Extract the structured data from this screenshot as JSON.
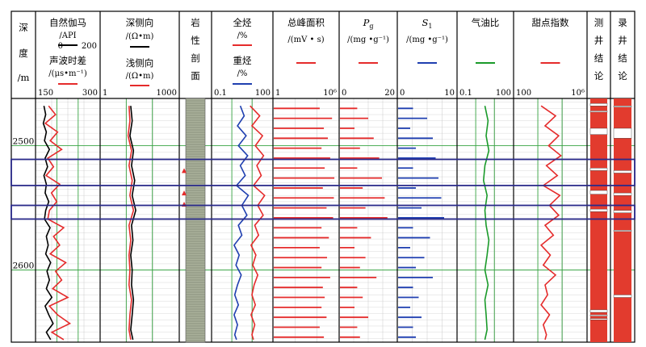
{
  "depth_track": {
    "title_chars": [
      "深",
      "度",
      "/m"
    ],
    "depth_labels": [
      "2500",
      "2600"
    ]
  },
  "tracks": {
    "gr_ac": {
      "curve1_name": "自然伽马",
      "curve1_unit": "/API",
      "curve1_scale_left": "0",
      "curve1_scale_right": "200",
      "curve1_color": "#000000",
      "curve2_name": "声波时差",
      "curve2_unit": "/(μs•m⁻¹)",
      "curve2_scale_left": "150",
      "curve2_scale_right": "300",
      "curve2_color": "#e52b2b"
    },
    "resistivity": {
      "curve1_name": "深侧向",
      "curve1_unit": "/(Ω•m)",
      "curve1_color": "#000000",
      "curve2_name": "浅侧向",
      "curve2_unit": "/(Ω•m)",
      "curve2_color": "#e52b2b",
      "scale_left": "1",
      "scale_right": "1000"
    },
    "lithology": {
      "title_chars": [
        "岩",
        "性",
        "剖",
        "面"
      ]
    },
    "gas": {
      "curve1_name": "全烃",
      "curve1_unit": "/%",
      "curve1_color": "#e52b2b",
      "curve2_name": "重烃",
      "curve2_unit": "/%",
      "curve2_color": "#1f3fb0",
      "scale_left": "0.1",
      "scale_right": "100"
    },
    "peak_area": {
      "name": "总峰面积",
      "unit": "/(mV • s)",
      "color": "#e52b2b",
      "scale_left": "1",
      "scale_right": "10⁶"
    },
    "pg": {
      "name": "P",
      "name_sub": "g",
      "unit": "/(mg •g⁻¹)",
      "color": "#e52b2b",
      "scale_left": "0",
      "scale_right": "20"
    },
    "s1": {
      "name": "S",
      "name_sub": "1",
      "unit": "/(mg •g⁻¹)",
      "color": "#1f3fb0",
      "scale_left": "0",
      "scale_right": "10"
    },
    "gor": {
      "name": "气油比",
      "color": "#1a9a2a",
      "scale_left": "0.1",
      "scale_right": "100"
    },
    "sweet": {
      "name": "甜点指数",
      "color": "#e52b2b",
      "scale_left": "100",
      "scale_right": "10⁶"
    },
    "log_conclusion": {
      "title_chars": [
        "测",
        "井",
        "结",
        "论"
      ]
    },
    "mud_conclusion": {
      "title_chars": [
        "录",
        "井",
        "结",
        "论"
      ]
    }
  },
  "chart_data": {
    "type": "line",
    "depth_range": [
      2462,
      2658
    ],
    "depth_ticks": [
      2500,
      2600
    ],
    "highlight_intervals": [
      [
        2511,
        2532
      ],
      [
        2548,
        2559
      ]
    ],
    "series": [
      {
        "curve": "gr",
        "depth": [
          2468,
          2475,
          2482,
          2489,
          2496,
          2503,
          2510,
          2517,
          2524,
          2531,
          2538,
          2545,
          2552,
          2559,
          2566,
          2573,
          2580,
          2587,
          2594,
          2601,
          2608,
          2615,
          2622,
          2629,
          2636,
          2643,
          2650,
          2656
        ],
        "values": [
          22,
          28,
          20,
          30,
          24,
          40,
          26,
          34,
          22,
          30,
          26,
          38,
          28,
          24,
          42,
          30,
          36,
          28,
          44,
          32,
          40,
          30,
          48,
          26,
          38,
          52,
          30,
          44
        ]
      },
      {
        "curve": "ac",
        "depth": [
          2468,
          2475,
          2482,
          2489,
          2496,
          2503,
          2510,
          2517,
          2524,
          2531,
          2538,
          2545,
          2552,
          2559,
          2566,
          2573,
          2580,
          2587,
          2594,
          2601,
          2608,
          2615,
          2622,
          2629,
          2636,
          2643,
          2650,
          2656
        ],
        "values": [
          178,
          195,
          170,
          200,
          182,
          210,
          176,
          190,
          172,
          205,
          185,
          198,
          180,
          176,
          215,
          190,
          205,
          182,
          220,
          195,
          210,
          188,
          225,
          180,
          200,
          230,
          186,
          215
        ]
      },
      {
        "curve": "lld",
        "depth": [
          2468,
          2480,
          2492,
          2504,
          2516,
          2528,
          2540,
          2552,
          2564,
          2576,
          2588,
          2600,
          2612,
          2624,
          2636,
          2648,
          2656
        ],
        "values": [
          14,
          16,
          13,
          18,
          15,
          20,
          16,
          22,
          15,
          17,
          14,
          16,
          15,
          18,
          16,
          14,
          17
        ]
      },
      {
        "curve": "lls",
        "depth": [
          2468,
          2480,
          2492,
          2504,
          2516,
          2528,
          2540,
          2552,
          2564,
          2576,
          2588,
          2600,
          2612,
          2624,
          2636,
          2648,
          2656
        ],
        "values": [
          12,
          13,
          11,
          15,
          12,
          16,
          13,
          18,
          12,
          14,
          12,
          13,
          12,
          15,
          13,
          12,
          14
        ]
      },
      {
        "curve": "total_gas",
        "depth": [
          2468,
          2476,
          2484,
          2492,
          2500,
          2508,
          2516,
          2524,
          2532,
          2540,
          2548,
          2556,
          2564,
          2572,
          2580,
          2588,
          2596,
          2604,
          2612,
          2620,
          2628,
          2636,
          2644,
          2652,
          2656
        ],
        "values": [
          8,
          25,
          10,
          35,
          15,
          40,
          18,
          30,
          12,
          45,
          20,
          38,
          14,
          22,
          9,
          16,
          11,
          20,
          13,
          10,
          15,
          9,
          14,
          10,
          12
        ]
      },
      {
        "curve": "heavy_gas",
        "depth": [
          2468,
          2476,
          2484,
          2492,
          2500,
          2508,
          2516,
          2524,
          2532,
          2540,
          2548,
          2556,
          2564,
          2572,
          2580,
          2588,
          2596,
          2604,
          2612,
          2620,
          2628,
          2636,
          2644,
          2652,
          2656
        ],
        "values": [
          2.5,
          4,
          1.8,
          5,
          2,
          6,
          2.5,
          4.5,
          1.6,
          6.5,
          3,
          5.5,
          2,
          3,
          1.2,
          2.2,
          1.5,
          2.8,
          1.8,
          1.3,
          2,
          1.2,
          1.8,
          1.3,
          1.6
        ]
      },
      {
        "curve": "peak_area",
        "depth": [
          2470,
          2478,
          2486,
          2494,
          2502,
          2510,
          2518,
          2526,
          2534,
          2542,
          2550,
          2558,
          2566,
          2574,
          2582,
          2590,
          2598,
          2606,
          2614,
          2622,
          2630,
          2638,
          2646,
          2654
        ],
        "values": [
          20000,
          300000,
          50000,
          120000,
          30000,
          200000,
          60000,
          500000,
          40000,
          450000,
          90000,
          380000,
          30000,
          150000,
          20000,
          100000,
          30000,
          200000,
          40000,
          60000,
          30000,
          90000,
          20000,
          50000
        ]
      },
      {
        "curve": "pg",
        "depth": [
          2470,
          2478,
          2486,
          2494,
          2502,
          2510,
          2518,
          2526,
          2534,
          2542,
          2550,
          2558,
          2566,
          2574,
          2582,
          2590,
          2598,
          2606,
          2614,
          2622,
          2630,
          2638,
          2646,
          2654
        ],
        "values": [
          6,
          10,
          5,
          12,
          7,
          14,
          6,
          15,
          8,
          16,
          9,
          17,
          6,
          11,
          5,
          9,
          7,
          13,
          6,
          8,
          5,
          10,
          6,
          7
        ]
      },
      {
        "curve": "s1",
        "depth": [
          2470,
          2478,
          2486,
          2494,
          2502,
          2510,
          2518,
          2526,
          2534,
          2542,
          2550,
          2558,
          2566,
          2574,
          2582,
          2590,
          2598,
          2606,
          2614,
          2622,
          2630,
          2638,
          2646,
          2654
        ],
        "values": [
          2.5,
          5,
          2,
          6,
          3,
          6.5,
          2.5,
          7,
          3,
          7.5,
          4,
          8,
          2.5,
          5.5,
          2,
          4.5,
          3,
          6,
          2.5,
          3.5,
          2,
          4,
          2.5,
          3
        ]
      },
      {
        "curve": "gor",
        "depth": [
          2468,
          2480,
          2492,
          2504,
          2516,
          2528,
          2540,
          2552,
          2564,
          2576,
          2588,
          2600,
          2612,
          2624,
          2636,
          2648,
          2656
        ],
        "values": [
          3,
          4.5,
          3.5,
          5,
          3,
          2.5,
          4,
          3,
          3.5,
          5,
          4,
          3,
          4.5,
          3,
          3.5,
          4,
          3
        ]
      },
      {
        "curve": "sweet",
        "depth": [
          2468,
          2476,
          2484,
          2492,
          2500,
          2508,
          2516,
          2524,
          2532,
          2540,
          2548,
          2556,
          2564,
          2572,
          2580,
          2588,
          2596,
          2604,
          2612,
          2620,
          2628,
          2636,
          2644,
          2652,
          2656
        ],
        "values": [
          3000,
          20000,
          5000,
          30000,
          8000,
          40000,
          6000,
          25000,
          4000,
          35000,
          9000,
          30000,
          5000,
          15000,
          3000,
          10000,
          4000,
          20000,
          5000,
          7000,
          3000,
          9000,
          4000,
          6000,
          5000
        ]
      }
    ]
  }
}
